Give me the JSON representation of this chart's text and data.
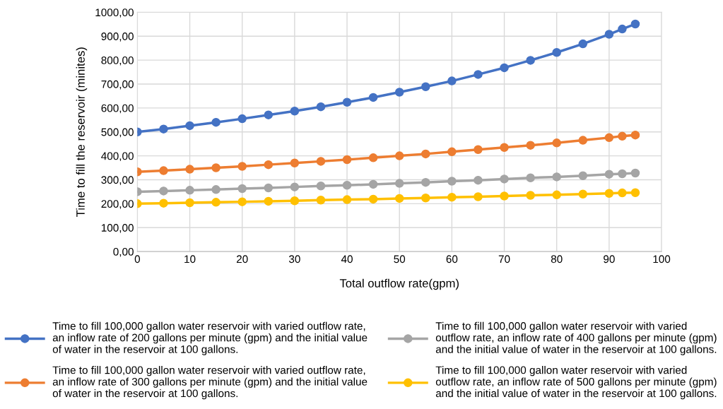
{
  "chart_data": {
    "type": "line",
    "xlabel": "Total outflow rate(gpm)",
    "ylabel": "Time to fill the reservoir (minites)",
    "x": [
      0,
      5,
      10,
      15,
      20,
      25,
      30,
      35,
      40,
      45,
      50,
      55,
      60,
      65,
      70,
      75,
      80,
      85,
      90,
      92.5,
      95
    ],
    "series": [
      {
        "name": "Time to fill 100,000 gallon water reservoir with varied outflow rate,\nan inflow rate of 200 gallons per minute (gpm) and the initial value\nof water in the reservoir at 100 gallons.",
        "color": "#4472c4",
        "values": [
          500,
          512,
          526,
          540,
          555,
          571,
          587,
          605,
          624,
          644,
          666,
          689,
          713,
          740,
          768,
          799,
          832,
          868,
          908,
          930,
          951
        ]
      },
      {
        "name": "Time to fill 100,000 gallon water reservoir with varied outflow rate,\nan inflow rate of 300 gallons per minute (gpm) and the initial value\nof water in the reservoir at 100 gallons.",
        "color": "#ed7d31",
        "values": [
          333,
          338,
          344,
          350,
          356,
          363,
          370,
          377,
          384,
          392,
          400,
          408,
          417,
          426,
          435,
          444,
          454,
          465,
          476,
          482,
          487
        ]
      },
      {
        "name": "Time to fill 100,000 gallon water reservoir with varied\noutflow rate, an inflow rate of 400 gallons per minute (gpm)\nand the initial value of water in the reservoir at 100 gallons.",
        "color": "#a5a5a5",
        "values": [
          250,
          253,
          256,
          259,
          263,
          266,
          270,
          274,
          277,
          281,
          285,
          289,
          294,
          298,
          303,
          308,
          312,
          317,
          323,
          325,
          328
        ]
      },
      {
        "name": "Time to fill 100,000 gallon water reservoir with varied\noutflow rate, an inflow rate of 500 gallons per minute (gpm)\nand the initial value of water in the reservoir at 100 gallons.",
        "color": "#ffc000",
        "values": [
          200,
          202,
          204,
          206,
          208,
          210,
          212,
          215,
          217,
          219,
          222,
          224,
          227,
          229,
          232,
          235,
          237,
          240,
          243,
          245,
          246
        ]
      }
    ],
    "xlim": [
      0,
      100
    ],
    "xticks": [
      0,
      10,
      20,
      30,
      40,
      50,
      60,
      70,
      80,
      90,
      100
    ],
    "ylim": [
      0,
      1000
    ],
    "yticks": [
      {
        "value": 0,
        "label": "0,00"
      },
      {
        "value": 100,
        "label": "100,00"
      },
      {
        "value": 200,
        "label": "200,00"
      },
      {
        "value": 300,
        "label": "300,00"
      },
      {
        "value": 400,
        "label": "400,00"
      },
      {
        "value": 500,
        "label": "500,00"
      },
      {
        "value": 600,
        "label": "600,00"
      },
      {
        "value": 700,
        "label": "700,00"
      },
      {
        "value": 800,
        "label": "800,00"
      },
      {
        "value": 900,
        "label": "900,00"
      },
      {
        "value": 1000,
        "label": "1000,00"
      }
    ],
    "grid": true,
    "legend": "bottom",
    "marker": "circle",
    "line_style": "solid"
  }
}
